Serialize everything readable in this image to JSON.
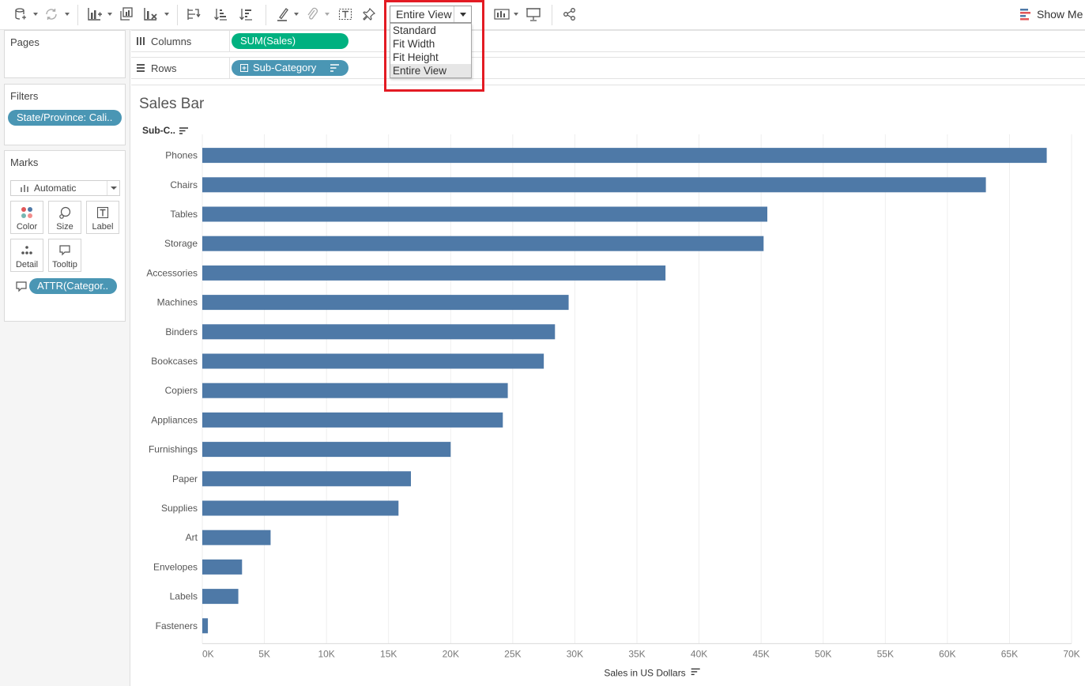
{
  "toolbar": {
    "fit_value": "Entire View",
    "fit_options": [
      {
        "label": "Standard",
        "selected": false
      },
      {
        "label": "Fit Width",
        "selected": false
      },
      {
        "label": "Fit Height",
        "selected": false
      },
      {
        "label": "Entire View",
        "selected": true
      }
    ],
    "show_me_label": "Show Me",
    "highlight_color": "#e31b23"
  },
  "shelves": {
    "columns_label": "Columns",
    "columns_pill": "SUM(Sales)",
    "rows_label": "Rows",
    "rows_pill": "Sub-Category"
  },
  "pages": {
    "title": "Pages"
  },
  "filters": {
    "title": "Filters",
    "pill": "State/Province: Cali.."
  },
  "marks": {
    "title": "Marks",
    "type": "Automatic",
    "buttons": {
      "color": "Color",
      "size": "Size",
      "label": "Label",
      "detail": "Detail",
      "tooltip": "Tooltip"
    },
    "field_pill": "ATTR(Categor.."
  },
  "chart_data": {
    "type": "bar",
    "orientation": "horizontal",
    "title": "Sales Bar",
    "category_header": "Sub-C..",
    "xlabel": "Sales in US Dollars",
    "ylabel": "",
    "categories": [
      "Phones",
      "Chairs",
      "Tables",
      "Storage",
      "Accessories",
      "Machines",
      "Binders",
      "Bookcases",
      "Copiers",
      "Appliances",
      "Furnishings",
      "Paper",
      "Supplies",
      "Art",
      "Envelopes",
      "Labels",
      "Fasteners"
    ],
    "values": [
      68000,
      63100,
      45500,
      45200,
      37300,
      29500,
      28400,
      27500,
      24600,
      24200,
      20000,
      16800,
      15800,
      5500,
      3200,
      2900,
      450
    ],
    "xlim": [
      0,
      70000
    ],
    "xticks": [
      "0K",
      "5K",
      "10K",
      "15K",
      "20K",
      "25K",
      "30K",
      "35K",
      "40K",
      "45K",
      "50K",
      "55K",
      "60K",
      "65K",
      "70K"
    ],
    "bar_color": "#4e79a7",
    "grid": "vertical"
  }
}
